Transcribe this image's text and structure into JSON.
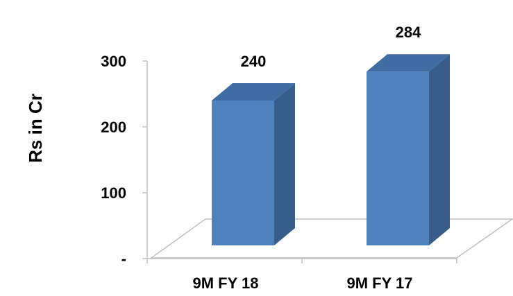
{
  "chart_data": {
    "type": "bar",
    "categories": [
      "9M FY 18",
      "9M FY 17"
    ],
    "values": [
      240,
      284
    ],
    "data_labels": [
      "240",
      "284"
    ],
    "ylabel": "Rs in Cr",
    "ylim": [
      0,
      300
    ],
    "yticks": [
      0,
      100,
      200,
      300
    ],
    "ytick_labels": [
      "-",
      "100",
      "200",
      "300"
    ],
    "grid": false,
    "legend": "none",
    "style": "3d-column",
    "colors": {
      "bar_front": "#4F81BD",
      "bar_side": "#385D8A",
      "bar_top": "#3F6DA3",
      "floor": "#BFBFBF"
    }
  }
}
